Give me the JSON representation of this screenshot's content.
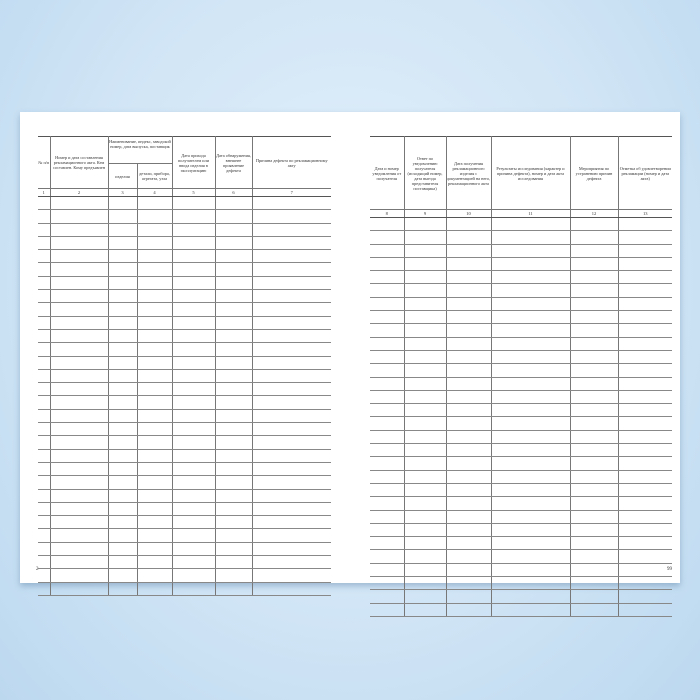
{
  "left_page": {
    "page_number": "2",
    "group_header": "Наименование, индекс, заводской номер, дата выпуска, поставщик",
    "columns": [
      {
        "num": "1",
        "label": "№ п/п"
      },
      {
        "num": "2",
        "label": "Номер и дата составления рекламационного акта. Кем составлен. Кому предъявлен"
      },
      {
        "num": "3",
        "label": "изделия"
      },
      {
        "num": "4",
        "label": "детали, прибора, агрегата, узла"
      },
      {
        "num": "5",
        "label": "Дата прихода получателем или ввода изделия в эксплуатацию"
      },
      {
        "num": "6",
        "label": "Дата обнаружения, внешнее проявление дефекта"
      },
      {
        "num": "7",
        "label": "Причина дефекта по рекламационному акту"
      }
    ]
  },
  "right_page": {
    "page_number": "99",
    "columns": [
      {
        "num": "8",
        "label": "Дата и номер уведомления от получателя"
      },
      {
        "num": "9",
        "label": "Ответ по уведомлению получателя (исходящий номер, дата выезда представителя поставщика)"
      },
      {
        "num": "10",
        "label": "Дата получения рекламационного изделия с документацией на него, рекламационного акта"
      },
      {
        "num": "11",
        "label": "Результаты исследования (характер и причина дефекта), номер и дата акта исследования"
      },
      {
        "num": "12",
        "label": "Мероприятия по устранению причин дефекта"
      },
      {
        "num": "13",
        "label": "Отметка об удовлетворении рекламации (номер и дата акта)"
      }
    ]
  },
  "colors": {
    "background": "#cfe4f5",
    "page": "#ffffff",
    "lines": "#777777"
  }
}
